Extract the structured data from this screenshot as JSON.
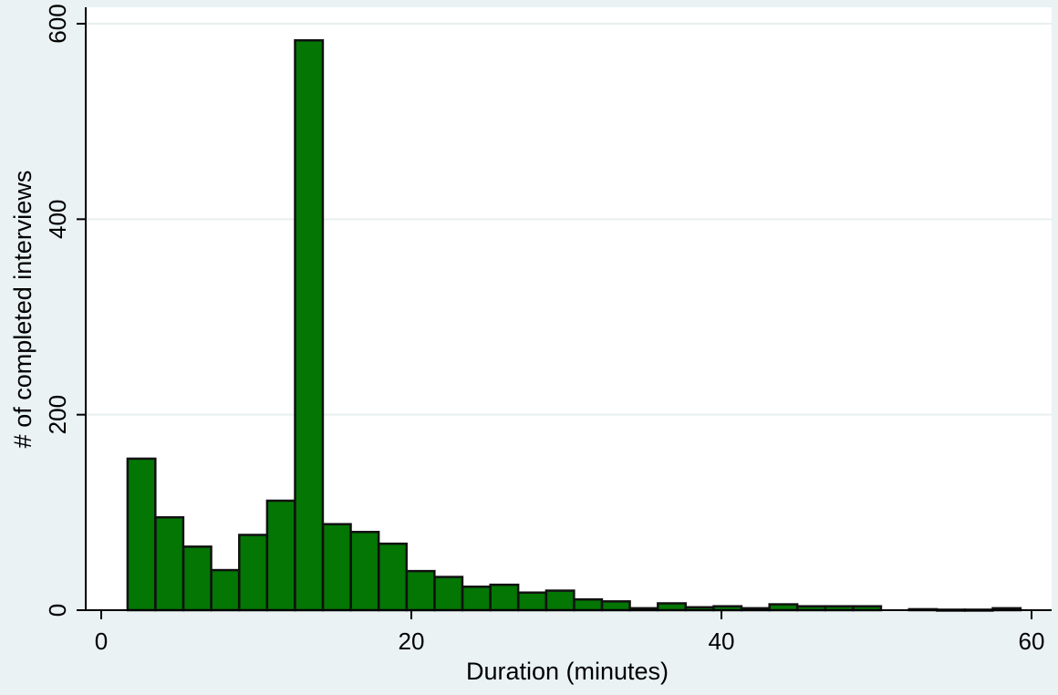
{
  "chart_data": {
    "type": "bar",
    "xlabel": "Duration (minutes)",
    "ylabel": "# of completed interviews",
    "xlim": [
      -2,
      61
    ],
    "ylim": [
      0,
      613
    ],
    "x_ticks": [
      0,
      20,
      40,
      60
    ],
    "x_tick_labels": [
      "0",
      "20",
      "40",
      "60"
    ],
    "y_ticks": [
      0,
      200,
      400,
      600
    ],
    "y_tick_labels": [
      "0",
      "200",
      "400",
      "600"
    ],
    "grid": true,
    "bin_width": 1.79,
    "bars": [
      {
        "x": 1.7,
        "value": 155
      },
      {
        "x": 3.5,
        "value": 95
      },
      {
        "x": 5.3,
        "value": 65
      },
      {
        "x": 7.1,
        "value": 41
      },
      {
        "x": 8.9,
        "value": 77
      },
      {
        "x": 10.7,
        "value": 112
      },
      {
        "x": 12.5,
        "value": 583
      },
      {
        "x": 14.3,
        "value": 88
      },
      {
        "x": 16.1,
        "value": 80
      },
      {
        "x": 17.9,
        "value": 68
      },
      {
        "x": 19.7,
        "value": 40
      },
      {
        "x": 21.5,
        "value": 34
      },
      {
        "x": 23.3,
        "value": 24
      },
      {
        "x": 25.1,
        "value": 26
      },
      {
        "x": 26.9,
        "value": 18
      },
      {
        "x": 28.7,
        "value": 20
      },
      {
        "x": 30.5,
        "value": 11
      },
      {
        "x": 32.3,
        "value": 9
      },
      {
        "x": 34.1,
        "value": 2
      },
      {
        "x": 35.9,
        "value": 7
      },
      {
        "x": 37.7,
        "value": 3
      },
      {
        "x": 39.5,
        "value": 4
      },
      {
        "x": 41.3,
        "value": 2
      },
      {
        "x": 43.1,
        "value": 6
      },
      {
        "x": 44.9,
        "value": 4
      },
      {
        "x": 46.7,
        "value": 4
      },
      {
        "x": 48.5,
        "value": 4
      },
      {
        "x": 52.1,
        "value": 1
      },
      {
        "x": 53.9,
        "value": 0.5
      },
      {
        "x": 55.7,
        "value": 0.5
      },
      {
        "x": 57.5,
        "value": 2
      }
    ],
    "colors": {
      "bar_fill": "#037604",
      "bar_stroke": "#111111",
      "plot_bg": "#ffffff",
      "outer_bg": "#eaf2f3",
      "grid": "#e7efef",
      "axis": "#000000"
    }
  }
}
